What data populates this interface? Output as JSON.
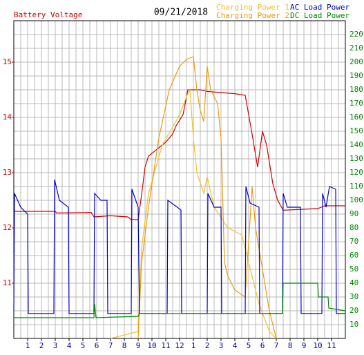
{
  "chart_data": {
    "type": "line",
    "title": "09/21/2018",
    "y_label": "Battery Voltage",
    "xlim": [
      0,
      24
    ],
    "xticks": [
      1,
      2,
      3,
      4,
      5,
      6,
      7,
      8,
      9,
      10,
      11,
      12,
      {
        "value": 13,
        "label": "1"
      },
      {
        "value": 14,
        "label": "2"
      },
      {
        "value": 15,
        "label": "3"
      },
      {
        "value": 16,
        "label": "4"
      },
      {
        "value": 17,
        "label": "5"
      },
      {
        "value": 18,
        "label": "6"
      },
      {
        "value": 19,
        "label": "7"
      },
      {
        "value": 20,
        "label": "8"
      },
      {
        "value": 21,
        "label": "9"
      },
      {
        "value": 22,
        "label": "10"
      },
      {
        "value": 23,
        "label": "11"
      }
    ],
    "ylim": [
      10,
      15.75
    ],
    "yticks": [
      11,
      12,
      13,
      14,
      15
    ],
    "y2lim": [
      0,
      230
    ],
    "y2ticks": [
      10,
      20,
      30,
      40,
      50,
      60,
      70,
      80,
      90,
      100,
      110,
      120,
      130,
      140,
      150,
      160,
      170,
      180,
      190,
      200,
      210,
      220
    ],
    "grid": true,
    "series": [
      {
        "name": "Battery Voltage",
        "color": "#d00000",
        "axis": "y",
        "legend": false,
        "x": [
          0,
          3,
          3.1,
          5.6,
          5.8,
          7,
          8.25,
          8.5,
          9,
          9.25,
          9.5,
          9.75,
          10.5,
          11,
          11.5,
          11.75,
          12.25,
          12.6,
          13.5,
          14,
          16,
          16.75,
          17.25,
          17.65,
          18,
          18.3,
          18.75,
          19.1,
          19.5,
          22,
          22.5,
          24
        ],
        "values": [
          12.3,
          12.3,
          12.27,
          12.28,
          12.2,
          12.22,
          12.2,
          12.15,
          12.15,
          12.6,
          13.1,
          13.3,
          13.45,
          13.55,
          13.7,
          13.85,
          14.05,
          14.5,
          14.5,
          14.47,
          14.43,
          14.4,
          13.7,
          13.1,
          13.75,
          13.5,
          12.8,
          12.5,
          12.32,
          12.35,
          12.4,
          12.4
        ]
      },
      {
        "name": "Charging Power 1",
        "color": "#f0c030",
        "axis": "y2",
        "x": [
          7,
          9,
          9.25,
          9.75,
          10.75,
          12,
          12.5,
          12.75,
          13,
          13.25,
          13.75,
          14,
          14.5,
          15.5,
          16.5,
          17,
          17.75,
          18.5,
          19
        ],
        "values": [
          0,
          5,
          65,
          105,
          140,
          162,
          175,
          180,
          145,
          120,
          105,
          117,
          95,
          80,
          75,
          55,
          25,
          5,
          0
        ]
      },
      {
        "name": "Charging Power 2",
        "color": "#f09a10",
        "axis": "y2",
        "x": [
          9,
          9.25,
          9.75,
          10.5,
          11.25,
          12,
          12.5,
          13,
          13.25,
          13.5,
          13.75,
          14,
          14.25,
          14.75,
          15,
          15.25,
          15.5,
          16,
          16.75,
          17.25,
          17.5,
          18,
          18.5,
          19
        ],
        "values": [
          0,
          55,
          95,
          145,
          180,
          197,
          202,
          204,
          180,
          165,
          157,
          197,
          180,
          170,
          145,
          55,
          45,
          35,
          30,
          110,
          80,
          50,
          20,
          0
        ]
      },
      {
        "name": "AC Load Power",
        "color": "#0000c8",
        "axis": "y2",
        "x": [
          0,
          0.05,
          0.5,
          1,
          1.05,
          2.9,
          2.95,
          3.3,
          3.95,
          4,
          5.8,
          5.85,
          6.3,
          6.75,
          6.8,
          8.5,
          8.55,
          9,
          9.1,
          11.1,
          11.15,
          12.1,
          12.15,
          14,
          14.05,
          14.5,
          15,
          15.05,
          16.75,
          16.8,
          17.1,
          17.75,
          17.8,
          19.45,
          19.5,
          19.8,
          20.75,
          20.8,
          22.3,
          22.35,
          22.6,
          22.85,
          23.3,
          23.35,
          24
        ],
        "values": [
          20,
          105,
          95,
          90,
          18,
          18,
          115,
          100,
          95,
          18,
          18,
          105,
          100,
          100,
          18,
          18,
          108,
          95,
          18,
          18,
          100,
          93,
          18,
          18,
          105,
          95,
          95,
          18,
          18,
          110,
          98,
          95,
          18,
          18,
          105,
          95,
          95,
          18,
          18,
          105,
          95,
          110,
          108,
          18,
          18
        ]
      },
      {
        "name": "DC Load Power",
        "color": "#008800",
        "axis": "y2",
        "x": [
          0,
          5.8,
          5.85,
          5.95,
          9,
          9.1,
          19.45,
          19.5,
          22,
          22.05,
          22.75,
          22.8,
          24
        ],
        "values": [
          15,
          15,
          25,
          15,
          16,
          18,
          18,
          40,
          40,
          30,
          30,
          22,
          20
        ]
      }
    ]
  }
}
